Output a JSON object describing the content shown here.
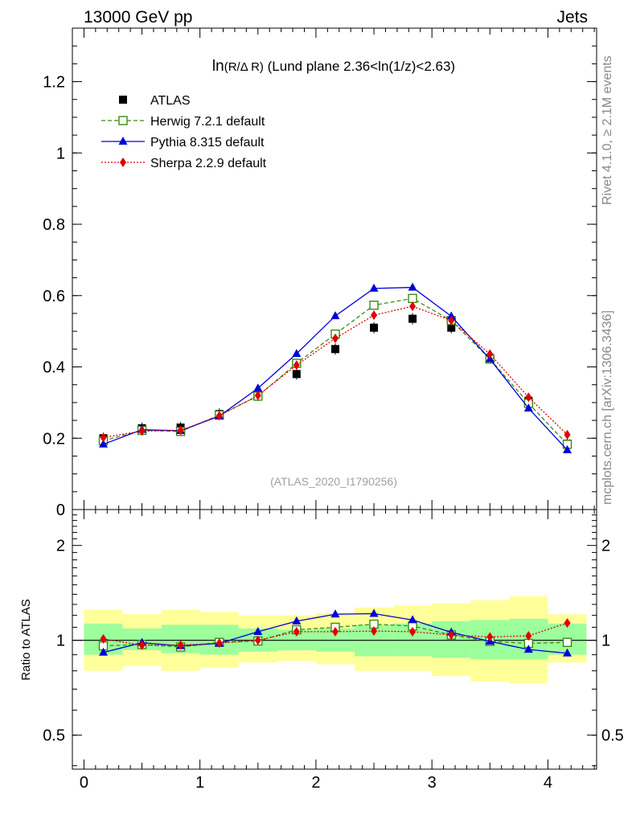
{
  "header": {
    "left": "13000 GeV pp",
    "right": "Jets"
  },
  "side_text": {
    "rivet": "Rivet 4.1.0, ≥ 2.1M events",
    "mcplots": "mcplots.cern.ch [arXiv:1306.3436]"
  },
  "watermark": "(ATLAS_2020_I1790256)",
  "colors": {
    "atlas": "#000000",
    "herwig": "#3a8c0f",
    "pythia": "#0000d8",
    "sherpa": "#e00000",
    "band_inner": "#9cff9c",
    "band_outer": "#ffff99"
  },
  "chart_data": [
    {
      "type": "line",
      "title_main": "ln",
      "title_paren": "(R/Δ R)",
      "title_rest": " (Lund plane 2.36<ln(1/z)<2.63)",
      "xlabel": "",
      "ylabel": "",
      "xlim": [
        -0.1,
        4.42
      ],
      "ylim": [
        0,
        1.35
      ],
      "yticks": [
        0,
        0.2,
        0.4,
        0.6,
        0.8,
        1,
        1.2
      ],
      "ytick_labels": [
        "0",
        "0.2",
        "0.4",
        "0.6",
        "0.8",
        "1",
        "1.2"
      ],
      "x": [
        0.167,
        0.5,
        0.833,
        1.167,
        1.5,
        1.833,
        2.167,
        2.5,
        2.833,
        3.167,
        3.5,
        3.833,
        4.167
      ],
      "series": [
        {
          "name": "ATLAS",
          "style": "markers",
          "values": [
            0.2,
            0.228,
            0.23,
            0.268,
            0.32,
            0.38,
            0.45,
            0.51,
            0.535,
            0.51,
            0.425,
            0.305,
            0.185
          ]
        },
        {
          "name": "Herwig 7.2.1 default",
          "style": "dashed-open-square",
          "values": [
            0.193,
            0.222,
            0.219,
            0.265,
            0.318,
            0.41,
            0.492,
            0.573,
            0.592,
            0.53,
            0.422,
            0.298,
            0.183
          ]
        },
        {
          "name": "Pythia 8.315 default",
          "style": "solid-triangle",
          "values": [
            0.183,
            0.224,
            0.221,
            0.262,
            0.34,
            0.437,
            0.543,
            0.62,
            0.623,
            0.542,
            0.422,
            0.284,
            0.167
          ]
        },
        {
          "name": "Sherpa 2.2.9 default",
          "style": "dotted-diamond",
          "values": [
            0.202,
            0.22,
            0.222,
            0.263,
            0.32,
            0.405,
            0.48,
            0.545,
            0.57,
            0.53,
            0.436,
            0.315,
            0.21
          ]
        }
      ]
    },
    {
      "type": "line",
      "ylabel": "Ratio to ATLAS",
      "xlim": [
        -0.1,
        4.42
      ],
      "ylim": [
        0.39,
        2.6
      ],
      "yscale": "log",
      "yticks": [
        0.5,
        1,
        2
      ],
      "ytick_labels": [
        "0.5",
        "1",
        "2"
      ],
      "xticks": [
        0,
        1,
        2,
        3,
        4
      ],
      "xtick_labels": [
        "0",
        "1",
        "2",
        "3",
        "4"
      ],
      "x": [
        0.167,
        0.5,
        0.833,
        1.167,
        1.5,
        1.833,
        2.167,
        2.5,
        2.833,
        3.167,
        3.5,
        3.833,
        4.167
      ],
      "bands": {
        "edges": [
          0,
          0.333,
          0.667,
          1,
          1.333,
          1.667,
          2,
          2.333,
          2.667,
          3,
          3.333,
          3.667,
          4,
          4.333
        ],
        "outer_high": [
          1.25,
          1.21,
          1.25,
          1.23,
          1.2,
          1.2,
          1.22,
          1.27,
          1.29,
          1.31,
          1.34,
          1.38,
          1.21
        ],
        "outer_low": [
          0.8,
          0.83,
          0.8,
          0.82,
          0.85,
          0.86,
          0.84,
          0.8,
          0.8,
          0.77,
          0.74,
          0.73,
          0.85
        ],
        "inner_high": [
          1.13,
          1.09,
          1.12,
          1.12,
          1.09,
          1.08,
          1.09,
          1.12,
          1.13,
          1.15,
          1.16,
          1.17,
          1.13
        ],
        "inner_low": [
          0.9,
          0.93,
          0.91,
          0.9,
          0.92,
          0.93,
          0.92,
          0.89,
          0.89,
          0.88,
          0.87,
          0.87,
          0.9
        ]
      },
      "series": [
        {
          "name": "Herwig 7.2.1 default",
          "values": [
            0.96,
            0.97,
            0.952,
            0.985,
            0.995,
            1.08,
            1.1,
            1.125,
            1.11,
            1.04,
            0.992,
            0.978,
            0.985
          ]
        },
        {
          "name": "Pythia 8.315 default",
          "values": [
            0.915,
            0.983,
            0.96,
            0.978,
            1.065,
            1.15,
            1.21,
            1.215,
            1.16,
            1.06,
            0.992,
            0.935,
            0.91
          ]
        },
        {
          "name": "Sherpa 2.2.9 default",
          "values": [
            1.01,
            0.965,
            0.965,
            0.98,
            1.0,
            1.065,
            1.065,
            1.07,
            1.065,
            1.04,
            1.025,
            1.033,
            1.135
          ]
        }
      ]
    }
  ]
}
